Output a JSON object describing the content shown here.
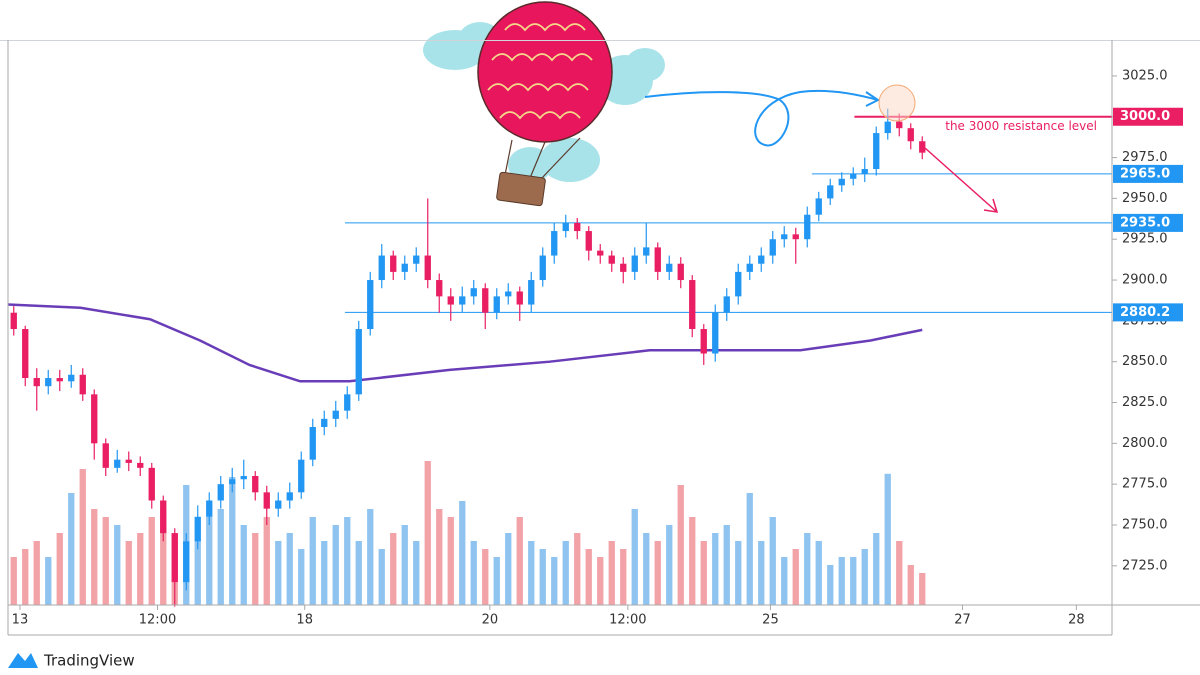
{
  "chart_data": {
    "type": "candlestick",
    "open": [
      2880,
      2870,
      2840,
      2835,
      2840,
      2838,
      2842,
      2830,
      2800,
      2785,
      2790,
      2788,
      2785,
      2765,
      2745,
      2715,
      2740,
      2755,
      2765,
      2775,
      2778,
      2780,
      2770,
      2760,
      2765,
      2770,
      2790,
      2810,
      2815,
      2820,
      2830,
      2870,
      2900,
      2915,
      2905,
      2910,
      2915,
      2900,
      2890,
      2885,
      2890,
      2895,
      2880,
      2890,
      2893,
      2885,
      2900,
      2915,
      2930,
      2935,
      2930,
      2918,
      2915,
      2910,
      2905,
      2915,
      2920,
      2905,
      2910,
      2900,
      2870,
      2855,
      2880,
      2890,
      2905,
      2910,
      2915,
      2925,
      2928,
      2925,
      2940,
      2950,
      2958,
      2962,
      2965,
      2968,
      2990,
      2997,
      2993,
      2985
    ],
    "high": [
      2884,
      2872,
      2846,
      2845,
      2845,
      2848,
      2846,
      2833,
      2803,
      2796,
      2795,
      2792,
      2788,
      2768,
      2748,
      2745,
      2762,
      2770,
      2780,
      2785,
      2790,
      2783,
      2774,
      2770,
      2776,
      2795,
      2815,
      2820,
      2826,
      2835,
      2875,
      2905,
      2922,
      2918,
      2915,
      2920,
      2950,
      2904,
      2895,
      2896,
      2900,
      2898,
      2895,
      2898,
      2896,
      2905,
      2920,
      2935,
      2940,
      2938,
      2933,
      2922,
      2918,
      2914,
      2920,
      2935,
      2923,
      2915,
      2914,
      2903,
      2873,
      2885,
      2895,
      2910,
      2915,
      2920,
      2930,
      2933,
      2932,
      2945,
      2954,
      2962,
      2966,
      2969,
      2975,
      2994,
      3005,
      3002,
      2996,
      2988
    ],
    "low": [
      2866,
      2835,
      2820,
      2830,
      2832,
      2834,
      2826,
      2790,
      2780,
      2782,
      2783,
      2780,
      2760,
      2740,
      2700,
      2710,
      2735,
      2750,
      2760,
      2770,
      2772,
      2765,
      2750,
      2755,
      2760,
      2766,
      2786,
      2805,
      2810,
      2815,
      2826,
      2866,
      2895,
      2900,
      2900,
      2905,
      2895,
      2880,
      2875,
      2880,
      2885,
      2870,
      2876,
      2885,
      2875,
      2880,
      2896,
      2910,
      2926,
      2925,
      2912,
      2910,
      2905,
      2898,
      2900,
      2910,
      2900,
      2900,
      2895,
      2865,
      2848,
      2850,
      2875,
      2885,
      2900,
      2905,
      2910,
      2920,
      2910,
      2920,
      2936,
      2946,
      2954,
      2958,
      2960,
      2964,
      2986,
      2988,
      2980,
      2974
    ],
    "close": [
      2870,
      2840,
      2835,
      2840,
      2838,
      2842,
      2830,
      2800,
      2785,
      2790,
      2788,
      2785,
      2765,
      2745,
      2715,
      2740,
      2755,
      2765,
      2775,
      2778,
      2780,
      2770,
      2760,
      2765,
      2770,
      2790,
      2810,
      2815,
      2820,
      2830,
      2870,
      2900,
      2915,
      2905,
      2910,
      2915,
      2900,
      2890,
      2885,
      2890,
      2895,
      2880,
      2890,
      2893,
      2885,
      2900,
      2915,
      2930,
      2935,
      2930,
      2918,
      2915,
      2910,
      2905,
      2915,
      2920,
      2905,
      2910,
      2900,
      2870,
      2855,
      2880,
      2890,
      2905,
      2910,
      2915,
      2925,
      2928,
      2925,
      2940,
      2950,
      2958,
      2962,
      2965,
      2968,
      2990,
      2997,
      2993,
      2985,
      2978
    ],
    "volume": [
      30,
      35,
      40,
      30,
      45,
      70,
      85,
      60,
      55,
      50,
      40,
      45,
      55,
      60,
      45,
      75,
      40,
      55,
      60,
      80,
      50,
      45,
      55,
      40,
      45,
      35,
      55,
      40,
      50,
      55,
      40,
      60,
      35,
      45,
      50,
      40,
      90,
      60,
      55,
      65,
      40,
      35,
      30,
      45,
      55,
      40,
      35,
      30,
      40,
      45,
      35,
      30,
      40,
      35,
      60,
      45,
      40,
      50,
      75,
      55,
      40,
      45,
      50,
      40,
      70,
      40,
      55,
      30,
      35,
      45,
      40,
      25,
      30,
      30,
      35,
      45,
      82,
      40,
      25,
      20
    ],
    "up_color": "#2196f3",
    "down_color": "#e91e63",
    "volume_up_color": "#90c4f0",
    "volume_down_color": "#f2a3a8",
    "vlim": [
      0,
      100
    ],
    "xlim": [
      -0.5,
      95.5
    ],
    "xticks": [
      {
        "value": 0.54,
        "label": "13"
      },
      {
        "value": 12.5,
        "label": "12:00"
      },
      {
        "value": 25.3,
        "label": "18"
      },
      {
        "value": 41.4,
        "label": "20"
      },
      {
        "value": 53.4,
        "label": "12:00"
      },
      {
        "value": 65.8,
        "label": "25"
      },
      {
        "value": 82.5,
        "label": "27"
      },
      {
        "value": 92.4,
        "label": "28"
      }
    ],
    "ylim": [
      2701,
      3047
    ],
    "yticks": [
      {
        "value": 2725,
        "label": "2725.0"
      },
      {
        "value": 2750,
        "label": "2750.0"
      },
      {
        "value": 2775,
        "label": "2775.0"
      },
      {
        "value": 2800,
        "label": "2800.0"
      },
      {
        "value": 2825,
        "label": "2825.0"
      },
      {
        "value": 2850,
        "label": "2850.0"
      },
      {
        "value": 2875,
        "label": "2875.0"
      },
      {
        "value": 2900,
        "label": "2900.0"
      },
      {
        "value": 2925,
        "label": "2925.0"
      },
      {
        "value": 2950,
        "label": "2950.0"
      },
      {
        "value": 2975,
        "label": "2975.0"
      },
      {
        "value": 3000,
        "label": "3000.0"
      },
      {
        "value": 3025,
        "label": "3025.0"
      }
    ],
    "grid": true,
    "levels": [
      {
        "value": 3000,
        "label": "3000.0",
        "color": "#e91e63",
        "from": 73.1
      },
      {
        "value": 2965,
        "label": "2965.0",
        "color": "#2196f3",
        "from": 69.4
      },
      {
        "value": 2935,
        "label": "2935.0",
        "color": "#2196f3",
        "from": 28.8
      },
      {
        "value": 2880.2,
        "color": "#2196f3",
        "from": 28.8
      }
    ],
    "moving_average": {
      "color": "#6a3db8",
      "x": [
        -0.5,
        5.8,
        11.85,
        16.2,
        20.5,
        24.9,
        29.2,
        37.9,
        46.6,
        55.3,
        60.5,
        68.4,
        74.5,
        79.0
      ],
      "values": [
        2885,
        2883,
        2876,
        2863,
        2848,
        2838,
        2838,
        2845,
        2850,
        2857,
        2857,
        2857,
        2863,
        2869.5
      ]
    },
    "annotation": {
      "text": "the 3000 resistance level",
      "color": "#e91e63",
      "x": 81.0,
      "y": 2994
    }
  },
  "footer": {
    "brand": "TradingView"
  }
}
